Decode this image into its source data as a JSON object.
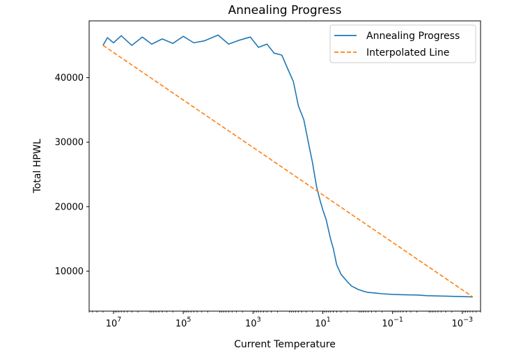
{
  "chart_data": {
    "type": "line",
    "title": "Annealing Progress",
    "xlabel": "Current Temperature",
    "ylabel": "Total HPWL",
    "x_scale": "log",
    "x_reversed": true,
    "xlim": [
      50000000,
      0.0003
    ],
    "ylim": [
      3800,
      48800
    ],
    "x_ticks": [
      {
        "value": 10000000,
        "base": "10",
        "exp": "7"
      },
      {
        "value": 100000,
        "base": "10",
        "exp": "5"
      },
      {
        "value": 1000,
        "base": "10",
        "exp": "3"
      },
      {
        "value": 10,
        "base": "10",
        "exp": "1"
      },
      {
        "value": 0.1,
        "base": "10",
        "exp": "−1"
      },
      {
        "value": 0.001,
        "base": "10",
        "exp": "−3"
      }
    ],
    "y_ticks": [
      {
        "value": 10000,
        "label": "10000"
      },
      {
        "value": 20000,
        "label": "20000"
      },
      {
        "value": 30000,
        "label": "30000"
      },
      {
        "value": 40000,
        "label": "40000"
      }
    ],
    "grid": false,
    "legend_position": "upper-right",
    "series": [
      {
        "name": "Annealing Progress",
        "color": "#1f77b4",
        "style": "solid",
        "x": [
          20000000,
          15000000,
          10000000,
          6000000,
          3000000,
          1500000,
          800000,
          400000,
          200000,
          100000,
          50000,
          25000,
          10000,
          5000,
          2500,
          1200,
          700,
          400,
          250,
          150,
          100,
          70,
          50,
          35,
          25,
          20,
          15,
          12,
          10,
          8,
          6,
          5,
          4,
          3,
          2,
          1.5,
          1,
          0.7,
          0.5,
          0.3,
          0.2,
          0.1,
          0.05,
          0.02,
          0.01,
          0.005,
          0.002,
          0.001,
          0.0005
        ],
        "y": [
          45000,
          46200,
          45400,
          46500,
          45000,
          46300,
          45200,
          46000,
          45300,
          46400,
          45400,
          45700,
          46600,
          45200,
          45800,
          46300,
          44700,
          45200,
          43800,
          43500,
          41300,
          39400,
          35600,
          33500,
          29500,
          27000,
          23000,
          21000,
          19500,
          18000,
          15000,
          13500,
          11000,
          9500,
          8400,
          7700,
          7200,
          6900,
          6700,
          6600,
          6500,
          6400,
          6350,
          6300,
          6200,
          6150,
          6100,
          6050,
          6000
        ]
      },
      {
        "name": "Interpolated Line",
        "color": "#ff7f0e",
        "style": "dashed",
        "x": [
          20000000,
          0.0005
        ],
        "y": [
          45000,
          6000
        ]
      }
    ]
  }
}
